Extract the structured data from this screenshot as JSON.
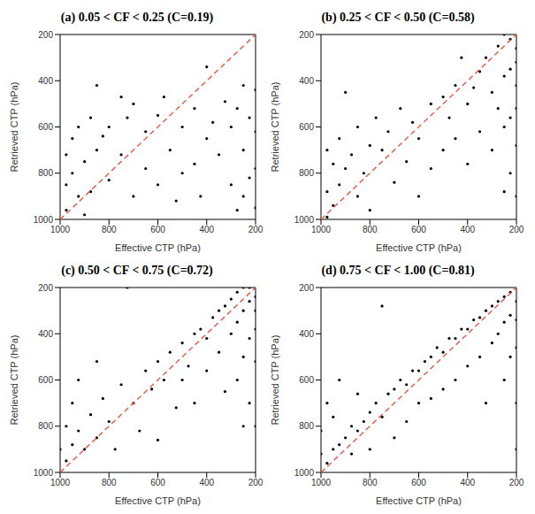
{
  "chart_data": [
    {
      "type": "scatter",
      "title": "(a) 0.05 < CF < 0.25 (C=0.19)",
      "x_label": "Effective CTP (hPa)",
      "y_label": "Retrieved CTP (hPa)",
      "xlim": [
        1000,
        200
      ],
      "ylim": [
        1000,
        200
      ],
      "xticks": [
        1000,
        800,
        600,
        400,
        200
      ],
      "yticks": [
        1000,
        800,
        600,
        400,
        200
      ],
      "series": [
        {
          "type": "scatter",
          "color": "#000000",
          "marker": "circle",
          "x": [
            975,
            975,
            975,
            950,
            950,
            925,
            925,
            900,
            900,
            875,
            875,
            850,
            850,
            825,
            800,
            800,
            750,
            750,
            725,
            700,
            700,
            650,
            650,
            600,
            600,
            575,
            550,
            525,
            500,
            500,
            450,
            450,
            425,
            400,
            400,
            375,
            350,
            325,
            300,
            300,
            275,
            275,
            250,
            250,
            250,
            225,
            225,
            200,
            200,
            200,
            200,
            200
          ],
          "values": [
            720,
            850,
            960,
            650,
            800,
            600,
            900,
            750,
            980,
            560,
            880,
            420,
            700,
            640,
            600,
            830,
            470,
            720,
            560,
            500,
            900,
            620,
            780,
            550,
            850,
            470,
            700,
            920,
            600,
            800,
            520,
            760,
            900,
            340,
            650,
            580,
            720,
            490,
            600,
            850,
            520,
            960,
            420,
            700,
            900,
            560,
            820,
            200,
            440,
            620,
            780,
            950
          ]
        },
        {
          "type": "line",
          "color": "#e8604c",
          "line_style": "dashed",
          "x": [
            1000,
            200
          ],
          "values": [
            1000,
            200
          ]
        }
      ]
    },
    {
      "type": "scatter",
      "title": "(b) 0.25 < CF < 0.50 (C=0.58)",
      "x_label": "Effective CTP (hPa)",
      "y_label": "Retrieved CTP (hPa)",
      "xlim": [
        1000,
        200
      ],
      "ylim": [
        1000,
        200
      ],
      "xticks": [
        1000,
        800,
        600,
        400,
        200
      ],
      "yticks": [
        1000,
        800,
        600,
        400,
        200
      ],
      "series": [
        {
          "type": "scatter",
          "color": "#000000",
          "marker": "circle",
          "x": [
            975,
            975,
            975,
            950,
            950,
            925,
            925,
            900,
            900,
            875,
            850,
            850,
            825,
            800,
            800,
            775,
            750,
            725,
            700,
            675,
            650,
            625,
            600,
            600,
            550,
            550,
            500,
            500,
            475,
            450,
            450,
            425,
            400,
            400,
            375,
            350,
            350,
            325,
            300,
            300,
            275,
            275,
            250,
            250,
            250,
            250,
            225,
            225,
            225,
            225,
            200,
            200,
            200,
            200,
            200,
            200,
            200
          ],
          "values": [
            700,
            880,
            990,
            760,
            940,
            650,
            850,
            450,
            780,
            720,
            600,
            900,
            800,
            680,
            960,
            560,
            700,
            620,
            840,
            520,
            750,
            580,
            650,
            900,
            500,
            780,
            470,
            700,
            560,
            420,
            650,
            300,
            500,
            760,
            430,
            360,
            620,
            300,
            450,
            700,
            250,
            520,
            200,
            380,
            600,
            880,
            220,
            350,
            560,
            800,
            200,
            260,
            320,
            420,
            520,
            680,
            900
          ]
        },
        {
          "type": "line",
          "color": "#e8604c",
          "line_style": "dashed",
          "x": [
            1000,
            200
          ],
          "values": [
            1000,
            200
          ]
        }
      ]
    },
    {
      "type": "scatter",
      "title": "(c) 0.50 < CF < 0.75 (C=0.72)",
      "x_label": "Effective CTP (hPa)",
      "y_label": "Retrieved CTP (hPa)",
      "xlim": [
        1000,
        200
      ],
      "ylim": [
        1000,
        200
      ],
      "xticks": [
        1000,
        800,
        600,
        400,
        200
      ],
      "yticks": [
        1000,
        800,
        600,
        400,
        200
      ],
      "series": [
        {
          "type": "scatter",
          "color": "#000000",
          "marker": "circle",
          "x": [
            1000,
            1000,
            975,
            975,
            950,
            950,
            925,
            925,
            900,
            875,
            850,
            850,
            825,
            800,
            775,
            750,
            725,
            700,
            675,
            650,
            625,
            600,
            600,
            575,
            550,
            525,
            500,
            500,
            475,
            450,
            450,
            425,
            400,
            400,
            375,
            350,
            350,
            325,
            325,
            300,
            300,
            275,
            275,
            275,
            250,
            250,
            250,
            250,
            225,
            225,
            225,
            225,
            200,
            200,
            200,
            200,
            200,
            200
          ],
          "values": [
            900,
            1000,
            800,
            950,
            700,
            880,
            600,
            820,
            900,
            750,
            520,
            850,
            680,
            780,
            900,
            620,
            200,
            700,
            820,
            560,
            640,
            520,
            860,
            600,
            480,
            720,
            440,
            600,
            540,
            400,
            700,
            380,
            420,
            560,
            330,
            300,
            480,
            280,
            650,
            250,
            400,
            220,
            350,
            600,
            200,
            300,
            500,
            800,
            200,
            260,
            420,
            700,
            200,
            240,
            300,
            380,
            520,
            800
          ]
        },
        {
          "type": "line",
          "color": "#e8604c",
          "line_style": "dashed",
          "x": [
            1000,
            200
          ],
          "values": [
            1000,
            200
          ]
        }
      ]
    },
    {
      "type": "scatter",
      "title": "(d) 0.75 < CF < 1.00 (C=0.81)",
      "x_label": "Effective CTP (hPa)",
      "y_label": "Retrieved CTP (hPa)",
      "xlim": [
        1000,
        200
      ],
      "ylim": [
        1000,
        200
      ],
      "xticks": [
        1000,
        800,
        600,
        400,
        200
      ],
      "yticks": [
        1000,
        800,
        600,
        400,
        200
      ],
      "series": [
        {
          "type": "scatter",
          "color": "#000000",
          "marker": "circle",
          "x": [
            1000,
            1000,
            1000,
            975,
            975,
            950,
            950,
            925,
            925,
            900,
            875,
            875,
            850,
            850,
            825,
            800,
            800,
            775,
            750,
            750,
            725,
            700,
            700,
            675,
            650,
            650,
            625,
            600,
            600,
            575,
            550,
            550,
            525,
            500,
            500,
            475,
            450,
            450,
            425,
            400,
            400,
            375,
            350,
            350,
            325,
            325,
            300,
            300,
            275,
            275,
            250,
            250,
            250,
            225,
            225,
            225,
            200,
            200,
            200,
            200,
            200,
            200
          ],
          "values": [
            1000,
            920,
            820,
            960,
            700,
            900,
            760,
            880,
            600,
            850,
            800,
            920,
            820,
            660,
            780,
            740,
            900,
            700,
            280,
            760,
            660,
            640,
            850,
            600,
            620,
            780,
            560,
            560,
            700,
            520,
            500,
            680,
            460,
            480,
            640,
            420,
            420,
            600,
            380,
            380,
            540,
            340,
            330,
            500,
            300,
            700,
            280,
            440,
            260,
            400,
            240,
            350,
            600,
            220,
            320,
            500,
            200,
            260,
            340,
            460,
            700,
            900
          ]
        },
        {
          "type": "line",
          "color": "#e8604c",
          "line_style": "dashed",
          "x": [
            1000,
            200
          ],
          "values": [
            1000,
            200
          ]
        }
      ]
    }
  ]
}
